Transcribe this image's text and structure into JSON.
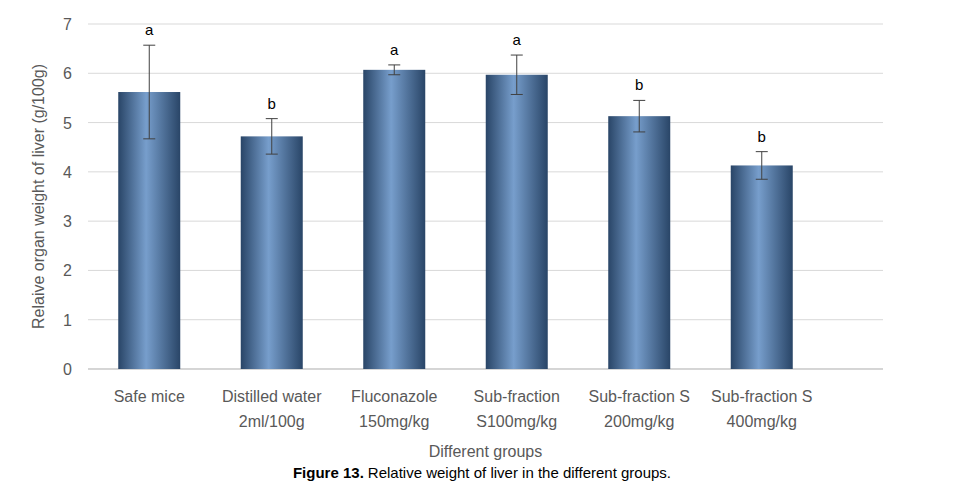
{
  "chart_data": {
    "type": "bar",
    "figure_label": "Figure 13.",
    "title": "Relative weight of liver in the different groups.",
    "x_label": "Different groups",
    "y_label": "Relaive organ weight of liver (g/100g)",
    "categories": [
      "Safe mice",
      "Distilled water\n2ml/100g",
      "Fluconazole\n150mg/kg",
      "Sub-fraction\nS100mg/kg",
      "Sub-fraction S\n200mg/kg",
      "Sub-fraction S\n400mg/kg"
    ],
    "values": [
      5.62,
      4.72,
      6.07,
      5.97,
      5.13,
      4.13
    ],
    "errors": [
      0.95,
      0.36,
      0.1,
      0.4,
      0.32,
      0.28
    ],
    "letters": [
      "a",
      "b",
      "a",
      "a",
      "b",
      "b"
    ],
    "color": "#4a7ebb",
    "ylim": [
      0,
      7
    ],
    "yticks": [
      0,
      1,
      2,
      3,
      4,
      5,
      6,
      7
    ],
    "grid": true
  }
}
